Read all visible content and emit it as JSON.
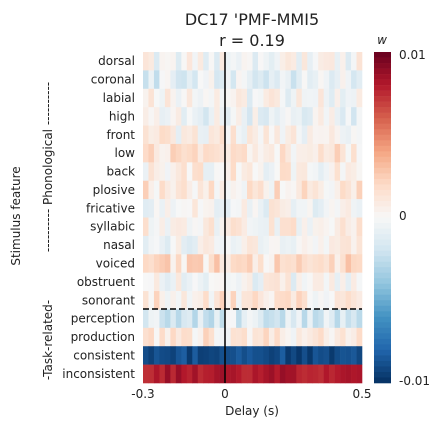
{
  "chart_data": {
    "type": "heatmap",
    "title": "DC17 'PMF-MMI5",
    "subtitle": "r = 0.19",
    "xlabel": "Delay (s)",
    "ylabel": "Stimulus feature",
    "xlim": [
      -0.3,
      0.5
    ],
    "x_ticks": [
      -0.3,
      0,
      0.5
    ],
    "x_tick_labels": [
      "-0.3",
      "0",
      "0.5"
    ],
    "colorbar": {
      "label": "w",
      "min": -0.01,
      "max": 0.01,
      "tick_labels": [
        "0.01",
        "0",
        "-0.01"
      ],
      "colormap": "RdBu_r"
    },
    "row_labels": [
      "dorsal",
      "coronal",
      "labial",
      "high",
      "front",
      "low",
      "back",
      "plosive",
      "fricative",
      "syllabic",
      "nasal",
      "voiced",
      "obstruent",
      "sonorant",
      "perception",
      "production",
      "consistent",
      "inconsistent"
    ],
    "groups": [
      {
        "label": "---------- Phonological ----------",
        "rows": [
          0,
          13
        ]
      },
      {
        "label": "-Task-related-",
        "rows": [
          14,
          17
        ]
      }
    ],
    "divider_after_row": 13,
    "zero_line_x": 0,
    "n_time_bins": 40,
    "approx_row_profiles": [
      {
        "feature": "dorsal",
        "mean": 0.0
      },
      {
        "feature": "coronal",
        "mean": -0.001
      },
      {
        "feature": "labial",
        "mean": 0.0
      },
      {
        "feature": "high",
        "mean": -0.0005
      },
      {
        "feature": "front",
        "mean": 0.0005
      },
      {
        "feature": "low",
        "mean": 0.001
      },
      {
        "feature": "back",
        "mean": 0.0005
      },
      {
        "feature": "plosive",
        "mean": 0.001
      },
      {
        "feature": "fricative",
        "mean": 0.0
      },
      {
        "feature": "syllabic",
        "mean": 0.0005
      },
      {
        "feature": "nasal",
        "mean": 0.0
      },
      {
        "feature": "voiced",
        "mean": 0.0015
      },
      {
        "feature": "obstruent",
        "mean": 0.0
      },
      {
        "feature": "sonorant",
        "mean": 0.001
      },
      {
        "feature": "perception",
        "mean": -0.0015
      },
      {
        "feature": "production",
        "mean": 0.001
      },
      {
        "feature": "consistent",
        "mean": -0.009
      },
      {
        "feature": "inconsistent",
        "mean": 0.008
      }
    ]
  }
}
